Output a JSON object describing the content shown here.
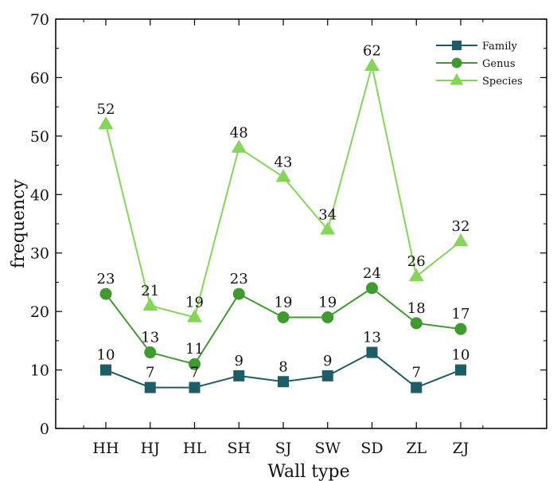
{
  "chart_data": {
    "type": "line",
    "title": "",
    "xlabel": "Wall type",
    "ylabel": "frequency",
    "categories": [
      "HH",
      "HJ",
      "HL",
      "SH",
      "SJ",
      "SW",
      "SD",
      "ZL",
      "ZJ"
    ],
    "ylim": [
      0,
      70
    ],
    "yticks": [
      0,
      10,
      20,
      30,
      40,
      50,
      60,
      70
    ],
    "grid": false,
    "legend": "top-right",
    "series": [
      {
        "name": "Family",
        "marker": "square",
        "color": "#1e5d66",
        "values": [
          10,
          7,
          7,
          9,
          8,
          9,
          13,
          7,
          10
        ]
      },
      {
        "name": "Genus",
        "marker": "circle",
        "color": "#3f9a2f",
        "values": [
          23,
          13,
          11,
          23,
          19,
          19,
          24,
          18,
          17
        ]
      },
      {
        "name": "Species",
        "marker": "triangle",
        "color": "#86d45a",
        "values": [
          52,
          21,
          19,
          48,
          43,
          34,
          62,
          26,
          32
        ]
      }
    ]
  }
}
